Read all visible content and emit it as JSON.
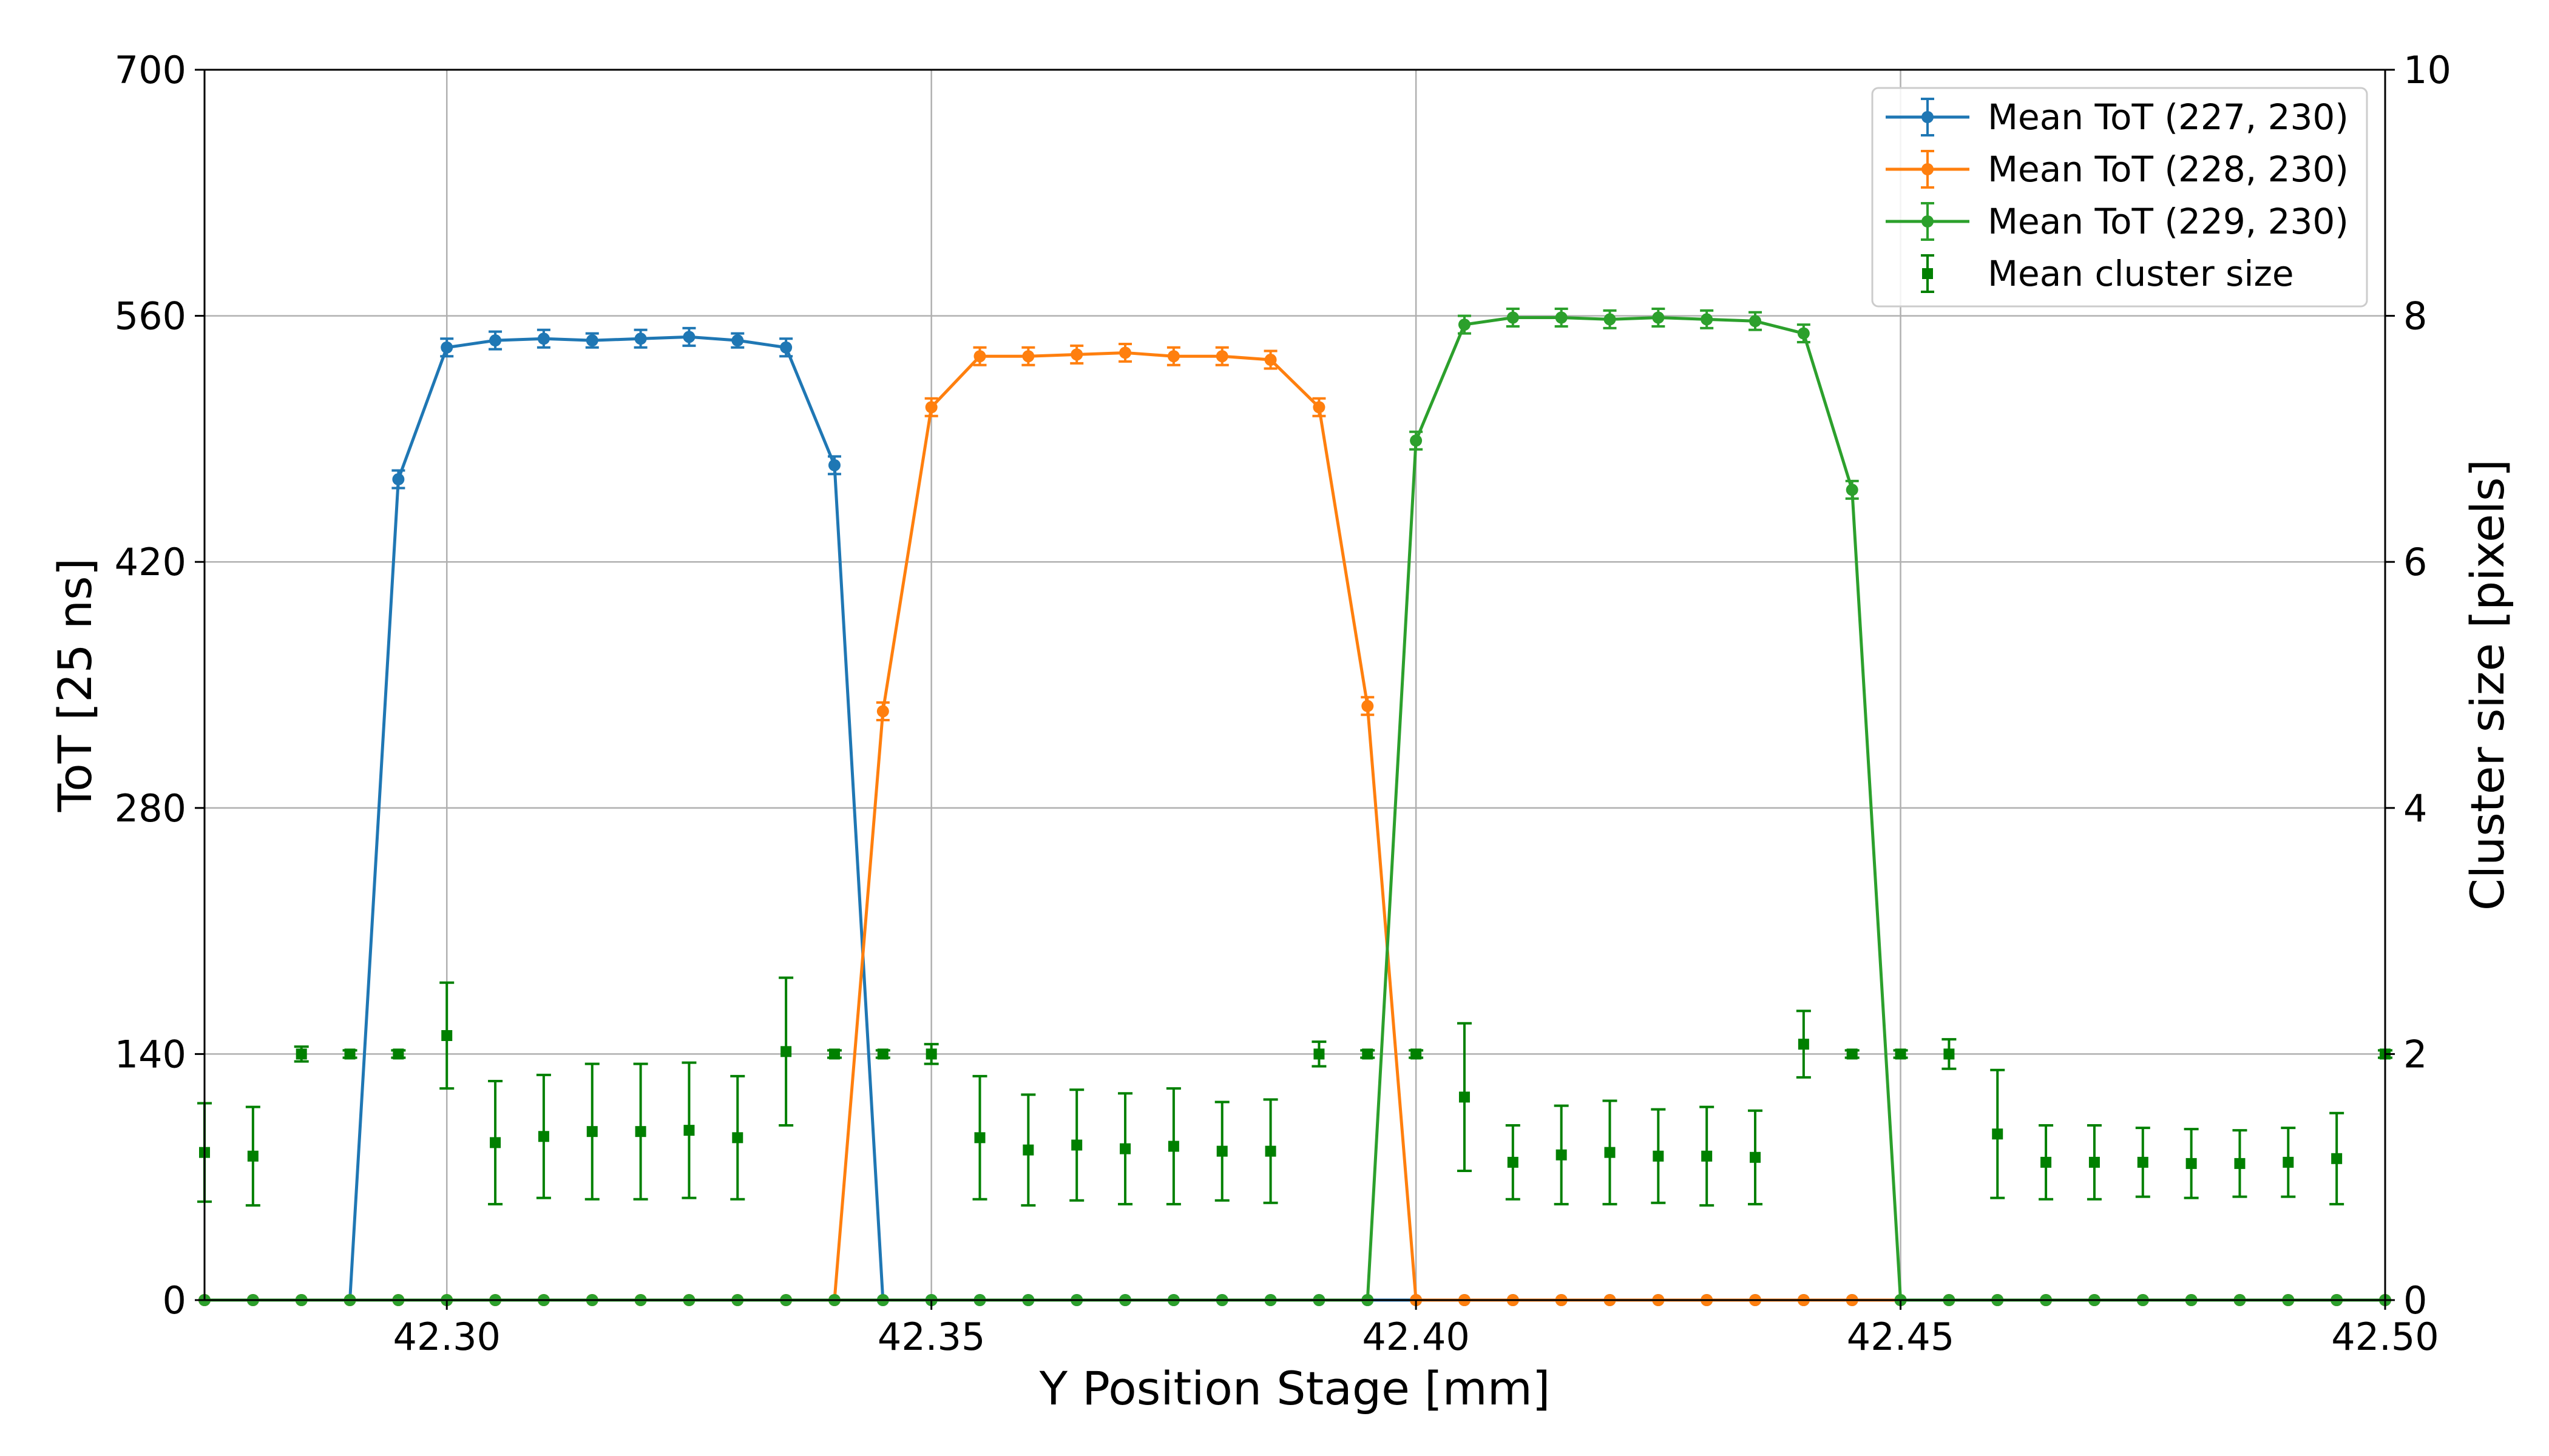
{
  "chart_data": {
    "type": "line",
    "xlabel": "Y Position Stage [mm]",
    "ylabel": "ToT [25 ns]",
    "y2label": "Cluster size [pixels]",
    "xlim": [
      42.275,
      42.5
    ],
    "ylim": [
      0,
      700
    ],
    "y2lim": [
      0,
      10
    ],
    "xticks": [
      "42.30",
      "42.35",
      "42.40",
      "42.45",
      "42.50"
    ],
    "yticks": [
      "0",
      "140",
      "280",
      "420",
      "560",
      "700"
    ],
    "y2ticks": [
      "0",
      "2",
      "4",
      "6",
      "8",
      "10"
    ],
    "grid": true,
    "legend_position": "upper-right",
    "x": [
      42.275,
      42.28,
      42.285,
      42.29,
      42.295,
      42.3,
      42.305,
      42.31,
      42.315,
      42.32,
      42.325,
      42.33,
      42.335,
      42.34,
      42.345,
      42.35,
      42.355,
      42.36,
      42.365,
      42.37,
      42.375,
      42.38,
      42.385,
      42.39,
      42.395,
      42.4,
      42.405,
      42.41,
      42.415,
      42.42,
      42.425,
      42.43,
      42.435,
      42.44,
      42.445,
      42.45,
      42.455,
      42.46,
      42.465,
      42.47,
      42.475,
      42.48,
      42.485,
      42.49,
      42.495,
      42.5
    ],
    "series": [
      {
        "name": "Mean ToT (227, 230)",
        "axis": "left",
        "color": "#1f77b4",
        "values": [
          0,
          0,
          0,
          0,
          467,
          542,
          546,
          547,
          546,
          547,
          548,
          546,
          542,
          475,
          0,
          0,
          0,
          0,
          0,
          0,
          0,
          0,
          0,
          0,
          0,
          0,
          0,
          0,
          0,
          0,
          0,
          0,
          0,
          0,
          0,
          0,
          0,
          0,
          0,
          0,
          0,
          0,
          0,
          0,
          0,
          0
        ],
        "errors": [
          0,
          0,
          0,
          0,
          5,
          5,
          5,
          5,
          4,
          5,
          5,
          4,
          5,
          5,
          0,
          0,
          0,
          0,
          0,
          0,
          0,
          0,
          0,
          0,
          0,
          0,
          0,
          0,
          0,
          0,
          0,
          0,
          0,
          0,
          0,
          0,
          0,
          0,
          0,
          0,
          0,
          0,
          0,
          0,
          0,
          0
        ]
      },
      {
        "name": "Mean ToT (228, 230)",
        "axis": "left",
        "color": "#ff7f0e",
        "values": [
          0,
          0,
          0,
          0,
          0,
          0,
          0,
          0,
          0,
          0,
          0,
          0,
          0,
          0,
          335,
          508,
          537,
          537,
          538,
          539,
          537,
          537,
          535,
          508,
          338,
          0,
          0,
          0,
          0,
          0,
          0,
          0,
          0,
          0,
          0,
          0,
          0,
          0,
          0,
          0,
          0,
          0,
          0,
          0,
          0,
          0
        ],
        "errors": [
          0,
          0,
          0,
          0,
          0,
          0,
          0,
          0,
          0,
          0,
          0,
          0,
          0,
          0,
          5,
          5,
          5,
          5,
          5,
          5,
          5,
          5,
          5,
          5,
          5,
          0,
          0,
          0,
          0,
          0,
          0,
          0,
          0,
          0,
          0,
          0,
          0,
          0,
          0,
          0,
          0,
          0,
          0,
          0,
          0,
          0
        ]
      },
      {
        "name": "Mean ToT (229, 230)",
        "axis": "left",
        "color": "#2ca02c",
        "values": [
          0,
          0,
          0,
          0,
          0,
          0,
          0,
          0,
          0,
          0,
          0,
          0,
          0,
          0,
          0,
          0,
          0,
          0,
          0,
          0,
          0,
          0,
          0,
          0,
          0,
          489,
          555,
          559,
          559,
          558,
          559,
          558,
          557,
          550,
          461,
          0,
          0,
          0,
          0,
          0,
          0,
          0,
          0,
          0,
          0,
          0
        ],
        "errors": [
          0,
          0,
          0,
          0,
          0,
          0,
          0,
          0,
          0,
          0,
          0,
          0,
          0,
          0,
          0,
          0,
          0,
          0,
          0,
          0,
          0,
          0,
          0,
          0,
          0,
          5,
          5,
          5,
          5,
          5,
          5,
          5,
          5,
          5,
          5,
          0,
          0,
          0,
          0,
          0,
          0,
          0,
          0,
          0,
          0,
          0
        ]
      },
      {
        "name": "Mean cluster size",
        "axis": "right",
        "color": "#008000",
        "values": [
          1.2,
          1.17,
          2.0,
          2.0,
          2.0,
          2.15,
          1.28,
          1.33,
          1.37,
          1.37,
          1.38,
          1.32,
          2.02,
          2.0,
          2.0,
          2.0,
          1.32,
          1.22,
          1.26,
          1.23,
          1.25,
          1.21,
          1.21,
          2.0,
          2.0,
          2.0,
          1.65,
          1.12,
          1.18,
          1.2,
          1.17,
          1.17,
          1.16,
          2.08,
          2.0,
          2.0,
          2.0,
          1.35,
          1.12,
          1.12,
          1.12,
          1.11,
          1.11,
          1.12,
          1.15,
          2.0
        ],
        "errors": [
          0.4,
          0.4,
          0.06,
          0.03,
          0.03,
          0.43,
          0.5,
          0.5,
          0.55,
          0.55,
          0.55,
          0.5,
          0.6,
          0.03,
          0.03,
          0.08,
          0.5,
          0.45,
          0.45,
          0.45,
          0.47,
          0.4,
          0.42,
          0.1,
          0.03,
          0.03,
          0.6,
          0.3,
          0.4,
          0.42,
          0.38,
          0.4,
          0.38,
          0.27,
          0.03,
          0.03,
          0.12,
          0.52,
          0.3,
          0.3,
          0.28,
          0.28,
          0.27,
          0.28,
          0.37,
          0.03
        ]
      }
    ]
  }
}
